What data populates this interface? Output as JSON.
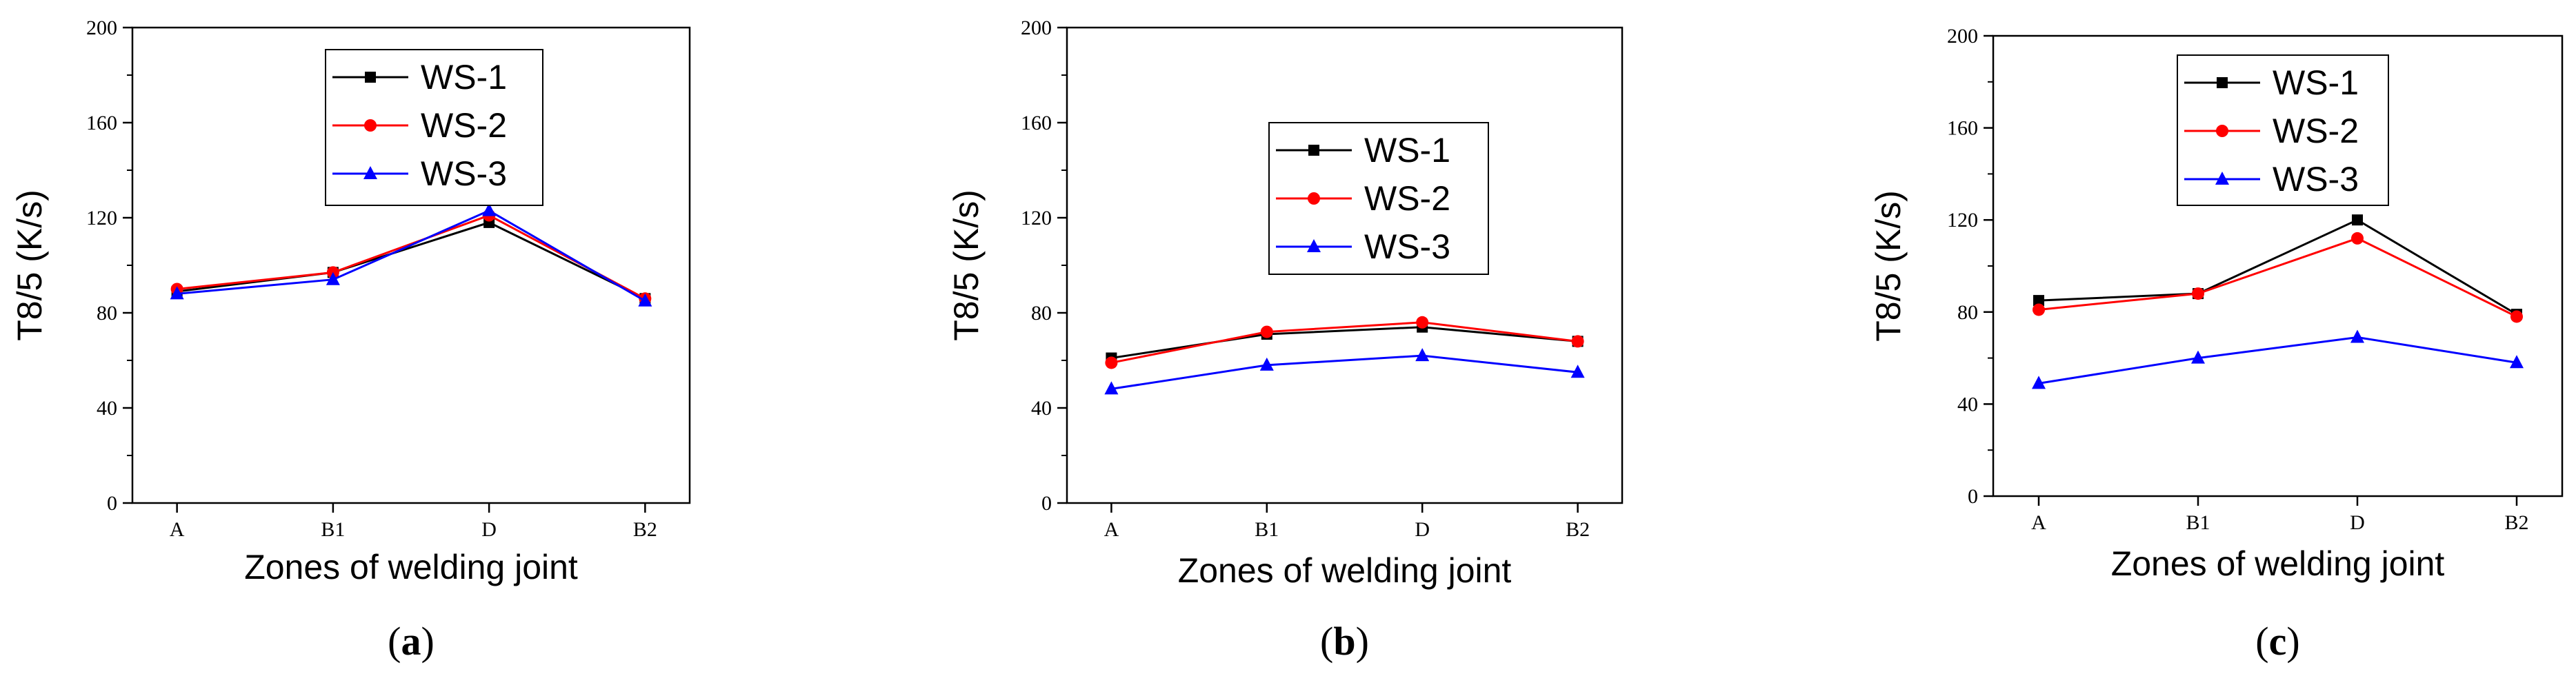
{
  "chart_data": [
    {
      "type": "line",
      "panel_label": "a",
      "xlabel": "Zones of welding joint",
      "ylabel": "T8/5 (K/s)",
      "ylim": [
        0,
        200
      ],
      "yticks": [
        "0",
        "40",
        "80",
        "120",
        "160",
        "200"
      ],
      "categories": [
        "A",
        "B1",
        "D",
        "B2"
      ],
      "legend_position": "top-center",
      "series": [
        {
          "name": "WS-1",
          "color": "#000000",
          "marker": "square",
          "values": [
            89,
            97,
            118,
            86
          ]
        },
        {
          "name": "WS-2",
          "color": "#ff0000",
          "marker": "circle",
          "values": [
            90,
            97,
            121,
            86
          ]
        },
        {
          "name": "WS-3",
          "color": "#0000ff",
          "marker": "triangle",
          "values": [
            88,
            94,
            123,
            85
          ]
        }
      ]
    },
    {
      "type": "line",
      "panel_label": "b",
      "xlabel": "Zones of welding joint",
      "ylabel": "T8/5 (K/s)",
      "ylim": [
        0,
        200
      ],
      "yticks": [
        "0",
        "40",
        "80",
        "120",
        "160",
        "200"
      ],
      "categories": [
        "A",
        "B1",
        "D",
        "B2"
      ],
      "legend_position": "center-right",
      "series": [
        {
          "name": "WS-1",
          "color": "#000000",
          "marker": "square",
          "values": [
            61,
            71,
            74,
            68
          ]
        },
        {
          "name": "WS-2",
          "color": "#ff0000",
          "marker": "circle",
          "values": [
            59,
            72,
            76,
            68
          ]
        },
        {
          "name": "WS-3",
          "color": "#0000ff",
          "marker": "triangle",
          "values": [
            48,
            58,
            62,
            55
          ]
        }
      ]
    },
    {
      "type": "line",
      "panel_label": "c",
      "xlabel": "Zones of welding joint",
      "ylabel": "T8/5 (K/s)",
      "ylim": [
        0,
        200
      ],
      "yticks": [
        "0",
        "40",
        "80",
        "120",
        "160",
        "200"
      ],
      "categories": [
        "A",
        "B1",
        "D",
        "B2"
      ],
      "legend_position": "top-center",
      "series": [
        {
          "name": "WS-1",
          "color": "#000000",
          "marker": "square",
          "values": [
            85,
            88,
            120,
            79
          ]
        },
        {
          "name": "WS-2",
          "color": "#ff0000",
          "marker": "circle",
          "values": [
            81,
            88,
            112,
            78
          ]
        },
        {
          "name": "WS-3",
          "color": "#0000ff",
          "marker": "triangle",
          "values": [
            49,
            60,
            69,
            58
          ]
        }
      ]
    }
  ]
}
